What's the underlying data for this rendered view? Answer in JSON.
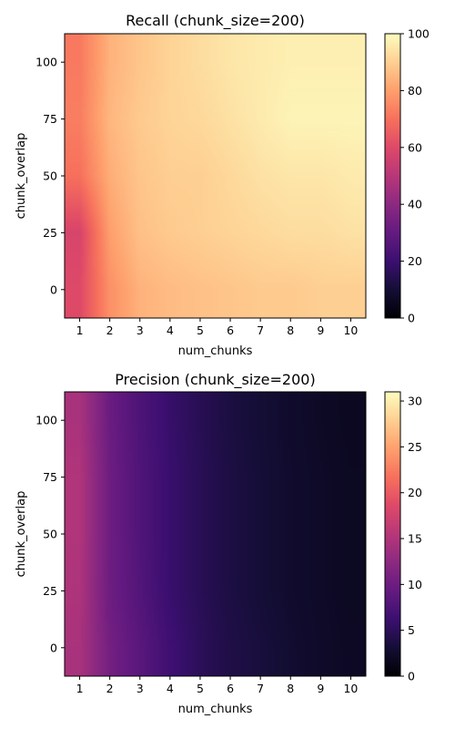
{
  "chart_data": [
    {
      "type": "heatmap",
      "title": "Recall (chunk_size=200)",
      "xlabel": "num_chunks",
      "ylabel": "chunk_overlap",
      "x": [
        1,
        2,
        3,
        4,
        5,
        6,
        7,
        8,
        9,
        10
      ],
      "x_ticks": [
        "1",
        "2",
        "3",
        "4",
        "5",
        "6",
        "7",
        "8",
        "9",
        "10"
      ],
      "y": [
        0,
        25,
        50,
        75,
        100
      ],
      "y_ticks": [
        "0",
        "25",
        "50",
        "75",
        "100"
      ],
      "xlim": [
        0.5,
        10.5
      ],
      "ylim": [
        -12.5,
        112.5
      ],
      "interpolation": "smooth",
      "colormap": "magma",
      "colorbar": {
        "min": 0,
        "max": 100,
        "ticks": [
          "0",
          "20",
          "40",
          "60",
          "80",
          "100"
        ]
      },
      "values": [
        [
          60,
          77,
          84,
          86,
          87,
          88,
          89,
          89,
          90,
          90
        ],
        [
          58,
          80,
          87,
          89,
          90,
          91,
          92,
          93,
          93,
          94
        ],
        [
          70,
          83,
          88,
          90,
          90,
          92,
          94,
          95,
          95,
          96
        ],
        [
          73,
          85,
          89,
          91,
          92,
          94,
          96,
          98,
          98,
          98
        ],
        [
          72,
          84,
          88,
          91,
          93,
          95,
          96,
          97,
          97,
          97
        ]
      ]
    },
    {
      "type": "heatmap",
      "title": "Precision (chunk_size=200)",
      "xlabel": "num_chunks",
      "ylabel": "chunk_overlap",
      "x": [
        1,
        2,
        3,
        4,
        5,
        6,
        7,
        8,
        9,
        10
      ],
      "x_ticks": [
        "1",
        "2",
        "3",
        "4",
        "5",
        "6",
        "7",
        "8",
        "9",
        "10"
      ],
      "y": [
        0,
        25,
        50,
        75,
        100
      ],
      "y_ticks": [
        "0",
        "25",
        "50",
        "75",
        "100"
      ],
      "xlim": [
        0.5,
        10.5
      ],
      "ylim": [
        -12.5,
        112.5
      ],
      "interpolation": "smooth",
      "colormap": "magma",
      "colorbar": {
        "min": 0,
        "max": 31,
        "ticks": [
          "0",
          "5",
          "10",
          "15",
          "20",
          "25",
          "30"
        ]
      },
      "values": [
        [
          14.5,
          10.5,
          8.5,
          6.5,
          5.0,
          4.0,
          3.5,
          2.8,
          2.3,
          2.0
        ],
        [
          14.8,
          10.0,
          8.0,
          6.0,
          4.8,
          3.8,
          3.2,
          2.6,
          2.2,
          1.9
        ],
        [
          15.0,
          10.0,
          7.8,
          6.0,
          4.8,
          3.8,
          3.2,
          2.6,
          2.2,
          1.9
        ],
        [
          15.0,
          10.0,
          7.8,
          6.0,
          4.8,
          3.8,
          3.2,
          2.6,
          2.2,
          1.9
        ],
        [
          14.5,
          9.8,
          7.6,
          5.9,
          4.7,
          3.7,
          3.1,
          2.5,
          2.1,
          1.8
        ]
      ]
    }
  ]
}
